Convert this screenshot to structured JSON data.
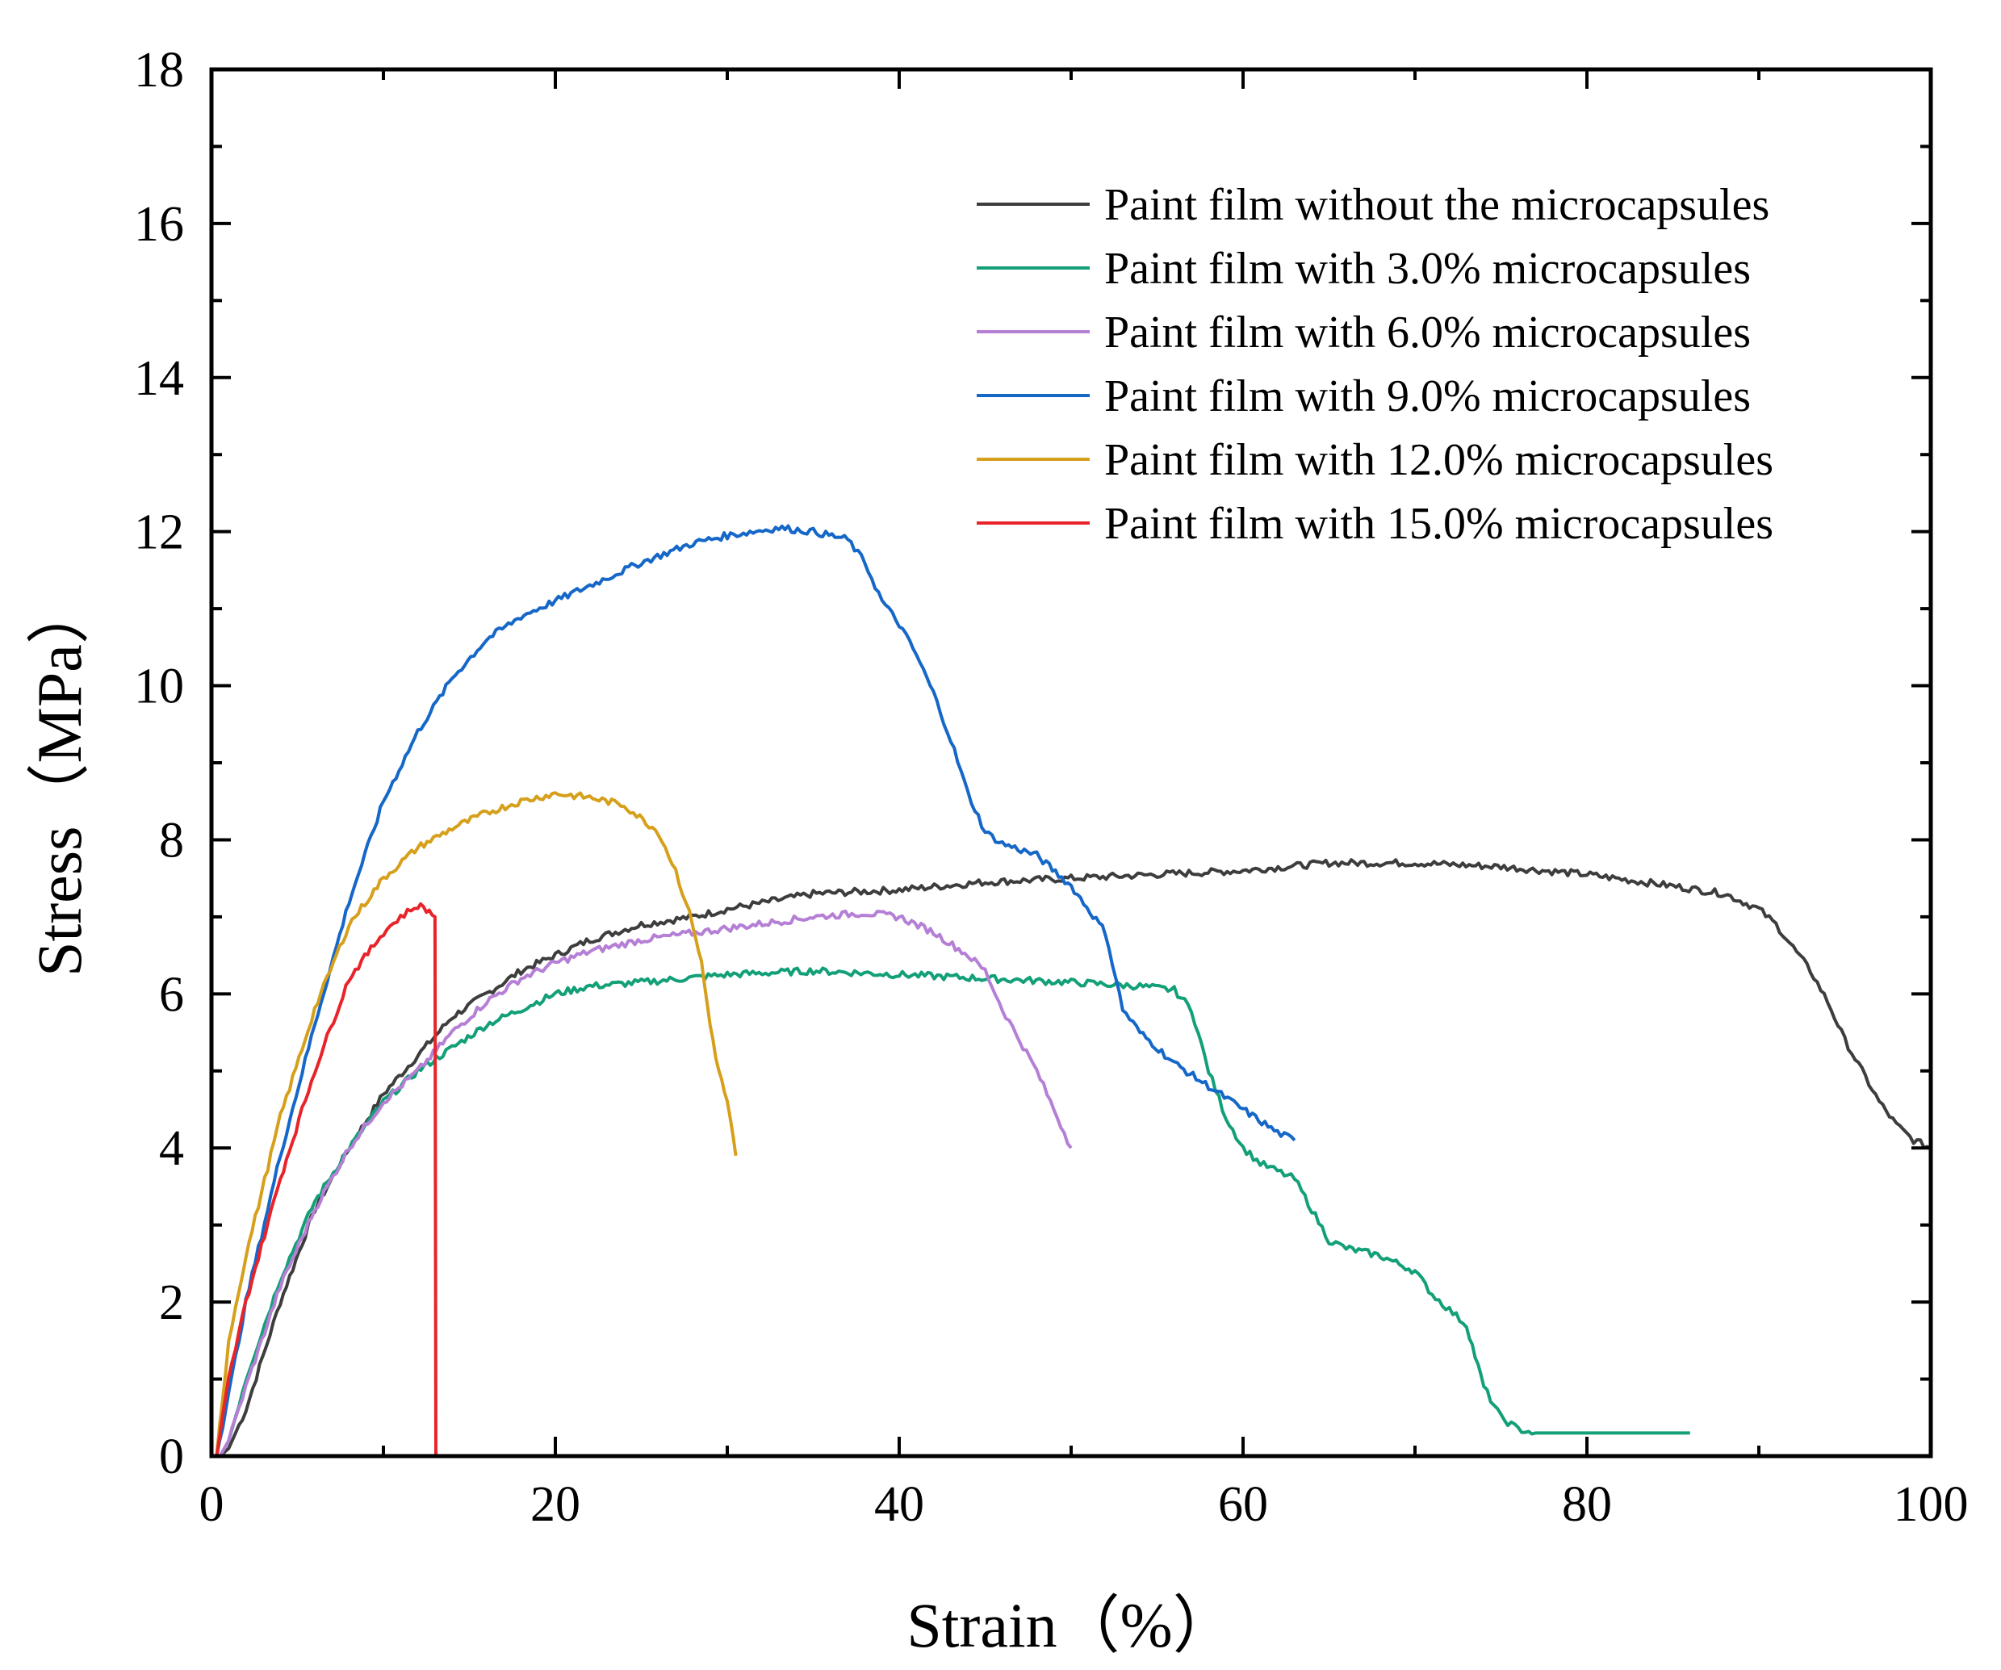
{
  "chart_data": {
    "type": "line",
    "title": "",
    "xlabel": "Strain（%）",
    "ylabel": "Stress（MPa）",
    "xlim": [
      0,
      100
    ],
    "ylim": [
      0,
      18
    ],
    "x_ticks": [
      0,
      20,
      40,
      60,
      80,
      100
    ],
    "y_ticks": [
      0,
      2,
      4,
      6,
      8,
      10,
      12,
      14,
      16,
      18
    ],
    "grid": false,
    "legend_position": "top-right",
    "series": [
      {
        "name": "Paint film without the microcapsules",
        "color": "#3d3d3d",
        "x": [
          0.5,
          1,
          2,
          3,
          4,
          6,
          8,
          10,
          12,
          14,
          16,
          18,
          20,
          22,
          25,
          28,
          30,
          35,
          40,
          45,
          50,
          55,
          60,
          65,
          70,
          75,
          80,
          85,
          88,
          90,
          91,
          92,
          93,
          94,
          95,
          96,
          97,
          98,
          99,
          100
        ],
        "y": [
          0,
          0.1,
          0.6,
          1.3,
          2.0,
          3.2,
          4.0,
          4.7,
          5.2,
          5.7,
          6.0,
          6.3,
          6.5,
          6.7,
          6.9,
          7.0,
          7.1,
          7.3,
          7.35,
          7.45,
          7.5,
          7.55,
          7.6,
          7.7,
          7.7,
          7.65,
          7.55,
          7.4,
          7.3,
          7.1,
          6.9,
          6.6,
          6.3,
          5.9,
          5.4,
          5.0,
          4.6,
          4.3,
          4.1,
          4.0
        ]
      },
      {
        "name": "Paint film with 3.0% microcapsules",
        "color": "#13a078",
        "x": [
          0.5,
          1,
          2,
          4,
          6,
          8,
          10,
          12,
          14,
          16,
          18,
          20,
          22,
          25,
          30,
          35,
          40,
          45,
          50,
          54,
          56,
          57,
          58,
          59,
          60,
          61,
          62,
          63,
          64,
          65,
          66,
          68,
          70,
          71,
          72,
          73,
          73.5,
          74,
          75,
          76,
          77,
          80,
          83,
          86
        ],
        "y": [
          0,
          0.2,
          1.0,
          2.3,
          3.3,
          4.0,
          4.6,
          5.0,
          5.3,
          5.6,
          5.8,
          6.0,
          6.1,
          6.15,
          6.25,
          6.3,
          6.25,
          6.2,
          6.15,
          6.1,
          6.05,
          5.8,
          5.0,
          4.4,
          4.0,
          3.8,
          3.7,
          3.6,
          3.2,
          2.8,
          2.7,
          2.6,
          2.4,
          2.1,
          1.9,
          1.7,
          1.3,
          0.9,
          0.5,
          0.35,
          0.3,
          0.3,
          0.3,
          0.3
        ]
      },
      {
        "name": "Paint film with 6.0% microcapsules",
        "color": "#b57fd6",
        "x": [
          0.5,
          1,
          2,
          4,
          6,
          8,
          10,
          12,
          14,
          16,
          18,
          20,
          22,
          25,
          30,
          35,
          38,
          40,
          42,
          44,
          45,
          46,
          47,
          48,
          49,
          50
        ],
        "y": [
          0,
          0.2,
          0.9,
          2.2,
          3.2,
          4.0,
          4.6,
          5.0,
          5.5,
          5.9,
          6.2,
          6.4,
          6.55,
          6.7,
          6.85,
          7.0,
          7.05,
          7.0,
          6.8,
          6.5,
          6.3,
          5.8,
          5.4,
          5.0,
          4.5,
          4.0
        ]
      },
      {
        "name": "Paint film with 9.0% microcapsules",
        "color": "#1567c8",
        "x": [
          0.3,
          1,
          2,
          4,
          6,
          8,
          10,
          12,
          14,
          16,
          18,
          20,
          22,
          25,
          28,
          30,
          33,
          35,
          37,
          38,
          39,
          40,
          41,
          42,
          43,
          44,
          45,
          46,
          48,
          50,
          52,
          53,
          54,
          56,
          58,
          60,
          62,
          63
        ],
        "y": [
          0,
          0.8,
          2.0,
          3.9,
          5.6,
          7.2,
          8.5,
          9.4,
          10.1,
          10.6,
          10.9,
          11.1,
          11.3,
          11.6,
          11.85,
          11.95,
          12.05,
          12.0,
          11.9,
          11.6,
          11.1,
          10.8,
          10.4,
          9.9,
          9.3,
          8.6,
          8.1,
          7.95,
          7.8,
          7.4,
          6.8,
          5.8,
          5.5,
          5.1,
          4.8,
          4.5,
          4.2,
          4.1
        ]
      },
      {
        "name": "Paint film with 12.0% microcapsules",
        "color": "#d6a01c",
        "x": [
          0.3,
          1,
          2,
          4,
          6,
          8,
          10,
          12,
          14,
          16,
          18,
          20,
          22,
          24,
          26,
          27,
          28,
          28.5,
          29,
          29.5,
          30,
          30.5
        ],
        "y": [
          0,
          1.5,
          2.6,
          4.4,
          5.8,
          6.9,
          7.5,
          7.9,
          8.15,
          8.35,
          8.5,
          8.6,
          8.55,
          8.45,
          8.1,
          7.6,
          6.9,
          6.4,
          5.6,
          5.0,
          4.6,
          3.9
        ]
      },
      {
        "name": "Paint film with 15.0% microcapsules",
        "color": "#e8242a",
        "x": [
          0.3,
          1,
          2,
          4,
          6,
          8,
          10,
          11,
          12,
          12.5,
          13,
          13.05,
          13.1
        ],
        "y": [
          0,
          1.0,
          2.0,
          3.6,
          5.0,
          6.2,
          6.8,
          7.0,
          7.15,
          7.1,
          7.0,
          0,
          0
        ]
      }
    ]
  }
}
